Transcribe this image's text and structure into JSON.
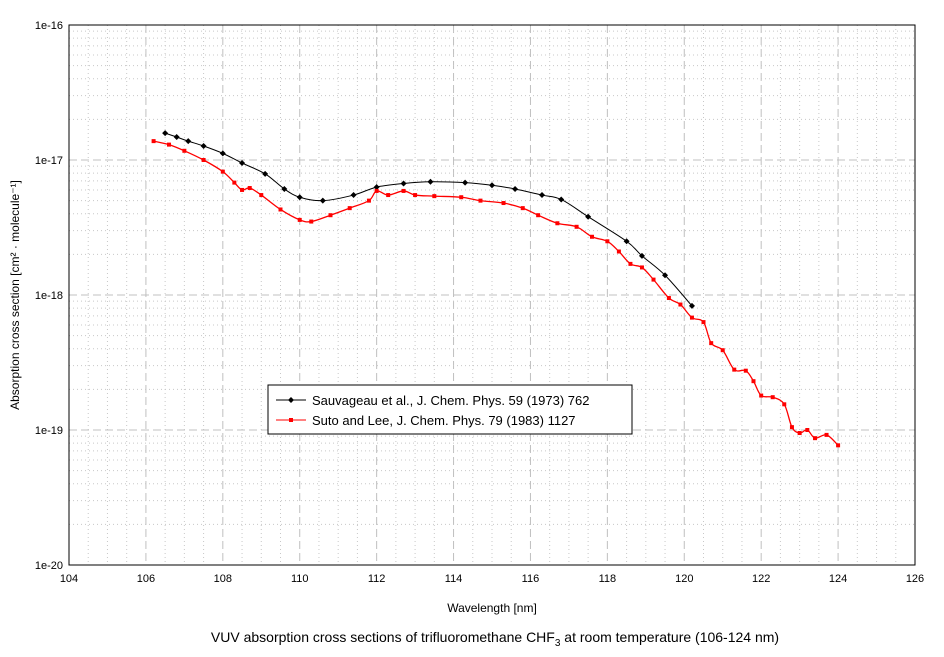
{
  "chart_data": {
    "type": "line",
    "title": "VUV absorption cross sections of trifluoromethane CHF",
    "title_sub": "3",
    "title_suffix": " at room temperature (106-124 nm)",
    "xlabel": "Wavelength [nm]",
    "ylabel": "Absorption cross section [cm² · molecule⁻¹]",
    "xlim": [
      104,
      126
    ],
    "ylim": [
      1e-20,
      1e-16
    ],
    "yscale": "log",
    "grid": true,
    "legend_position": "center-left",
    "x_ticks": [
      "104",
      "106",
      "108",
      "110",
      "112",
      "114",
      "116",
      "118",
      "120",
      "122",
      "124",
      "126"
    ],
    "y_ticks": [
      "1e-16",
      "1e-17",
      "1e-18",
      "1e-19",
      "1e-20"
    ],
    "series": [
      {
        "name": "Sauvageau et al., J. Chem. Phys. 59 (1973) 762",
        "color": "#000000",
        "x": [
          106.5,
          106.8,
          107.1,
          107.5,
          108.0,
          108.5,
          109.1,
          109.6,
          110.0,
          110.6,
          111.4,
          112.0,
          112.7,
          113.4,
          114.3,
          115.0,
          115.6,
          116.3,
          116.8,
          117.5,
          118.5,
          118.9,
          119.5,
          120.2
        ],
        "y": [
          1.58e-17,
          1.48e-17,
          1.38e-17,
          1.27e-17,
          1.12e-17,
          9.5e-18,
          7.9e-18,
          6.1e-18,
          5.3e-18,
          5e-18,
          5.5e-18,
          6.3e-18,
          6.7e-18,
          6.9e-18,
          6.8e-18,
          6.5e-18,
          6.1e-18,
          5.5e-18,
          5.1e-18,
          3.8e-18,
          2.5e-18,
          1.95e-18,
          1.4e-18,
          8.3e-19
        ]
      },
      {
        "name": "Suto and Lee, J. Chem. Phys. 79 (1983) 1127",
        "color": "#ff0000",
        "x": [
          106.2,
          106.6,
          107.0,
          107.5,
          108.0,
          108.3,
          108.5,
          108.7,
          109.0,
          109.5,
          110.0,
          110.3,
          110.8,
          111.3,
          111.8,
          112.0,
          112.3,
          112.7,
          113.0,
          113.5,
          114.2,
          114.7,
          115.3,
          115.8,
          116.2,
          116.7,
          117.2,
          117.6,
          118.0,
          118.3,
          118.6,
          118.9,
          119.2,
          119.6,
          119.9,
          120.2,
          120.5,
          120.7,
          121.0,
          121.3,
          121.6,
          121.8,
          122.0,
          122.3,
          122.6,
          122.8,
          123.0,
          123.2,
          123.4,
          123.7,
          124.0
        ],
        "y": [
          1.38e-17,
          1.3e-17,
          1.17e-17,
          1e-17,
          8.2e-18,
          6.8e-18,
          6e-18,
          6.2e-18,
          5.5e-18,
          4.3e-18,
          3.6e-18,
          3.5e-18,
          3.9e-18,
          4.4e-18,
          5e-18,
          5.9e-18,
          5.5e-18,
          5.9e-18,
          5.5e-18,
          5.4e-18,
          5.3e-18,
          5e-18,
          4.8e-18,
          4.4e-18,
          3.9e-18,
          3.4e-18,
          3.2e-18,
          2.7e-18,
          2.5e-18,
          2.1e-18,
          1.7e-18,
          1.6e-18,
          1.3e-18,
          9.5e-19,
          8.5e-19,
          6.8e-19,
          6.3e-19,
          4.4e-19,
          3.9e-19,
          2.8e-19,
          2.75e-19,
          2.3e-19,
          1.8e-19,
          1.75e-19,
          1.55e-19,
          1.05e-19,
          9.5e-20,
          1e-19,
          8.7e-20,
          9.2e-20,
          7.7e-20
        ]
      }
    ]
  }
}
